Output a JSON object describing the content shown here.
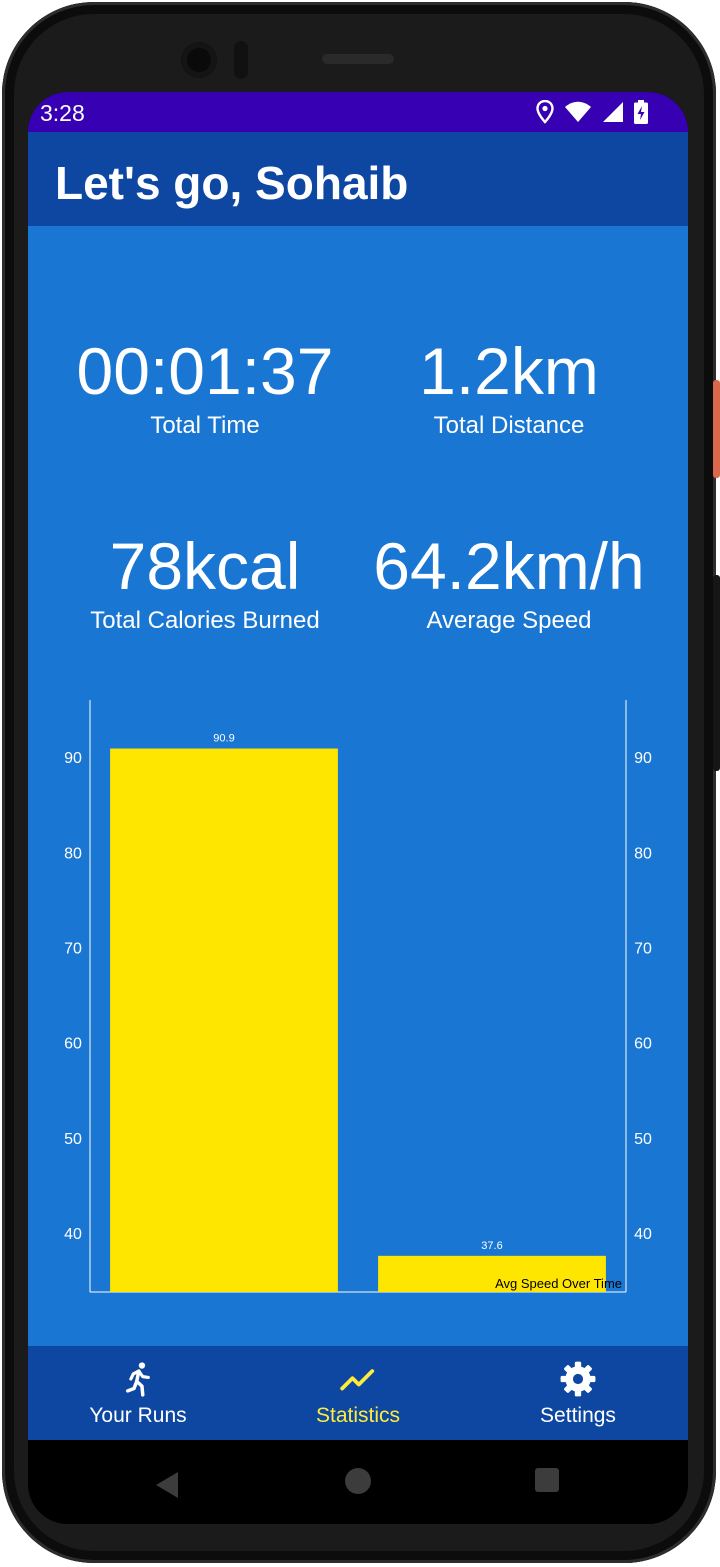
{
  "status_bar": {
    "time": "3:28"
  },
  "toolbar": {
    "title": "Let's go, Sohaib"
  },
  "stats": {
    "total_time": {
      "value": "00:01:37",
      "label": "Total Time"
    },
    "total_distance": {
      "value": "1.2km",
      "label": "Total Distance"
    },
    "total_calories": {
      "value": "78kcal",
      "label": "Total Calories Burned"
    },
    "average_speed": {
      "value": "64.2km/h",
      "label": "Average Speed"
    }
  },
  "chart_data": {
    "type": "bar",
    "categories": [
      "",
      ""
    ],
    "values": [
      90.9,
      37.6
    ],
    "value_labels": [
      "90.9",
      "37.6"
    ],
    "description_label": "Avg Speed Over Time",
    "ylim": [
      33.8,
      96.0
    ],
    "yticks": [
      40,
      50,
      60,
      70,
      80,
      90
    ],
    "left_axis": true,
    "right_axis": true,
    "grid": false,
    "bar_color": "#ffe600",
    "background": "#1976d2"
  },
  "bottom_nav": {
    "items": [
      {
        "label": "Your Runs",
        "icon": "run-icon"
      },
      {
        "label": "Statistics",
        "icon": "trending-up-icon"
      },
      {
        "label": "Settings",
        "icon": "gear-icon"
      }
    ],
    "active_index": 1
  },
  "colors": {
    "status_bar": "#3700b3",
    "toolbar": "#0d47a1",
    "content": "#1976d2",
    "accent": "#ffeb3b"
  }
}
